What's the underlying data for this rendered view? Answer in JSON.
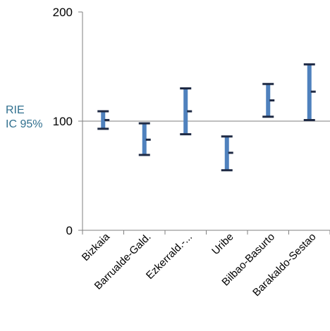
{
  "chart_data": {
    "type": "errorbar",
    "title": "",
    "ylabel": [
      "RIE",
      "IC 95%"
    ],
    "xlabel": "",
    "ylim": [
      0,
      200
    ],
    "yticks": [
      0,
      100,
      200
    ],
    "reference_line": 100,
    "grid": false,
    "categories": [
      "Bizkaia",
      "Barrualde-Gald.",
      "Ezkerrald.-...",
      "Uribe",
      "Bilbao-Basurto",
      "Barakaldo-Sestao"
    ],
    "series": [
      {
        "estimate": [
          101,
          83,
          109,
          71,
          119,
          127
        ]
      },
      {
        "lower": [
          93,
          69,
          88,
          55,
          104,
          101
        ]
      },
      {
        "upper": [
          109,
          98,
          130,
          86,
          134,
          152
        ]
      }
    ]
  },
  "colors": {
    "bar": "#4f81bd",
    "cap": "#1f2a44",
    "axis": "#7f7f7f",
    "ylabel": "#31708f"
  }
}
